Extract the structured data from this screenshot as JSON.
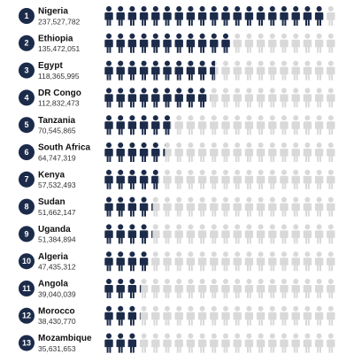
{
  "chart_data": {
    "type": "pictogram",
    "ranks": [
      "1",
      "2",
      "3",
      "4",
      "5",
      "6",
      "7",
      "8",
      "9",
      "10",
      "11",
      "12",
      "13"
    ],
    "categories": [
      "Nigeria",
      "Ethiopia",
      "Egypt",
      "DR Congo",
      "Tanzania",
      "South Africa",
      "Kenya",
      "Sudan",
      "Uganda",
      "Algeria",
      "Angola",
      "Morocco",
      "Mozambique"
    ],
    "values": [
      237527782,
      135472051,
      118365995,
      112832473,
      70545865,
      64747319,
      57532493,
      51662147,
      51384894,
      47435312,
      39040039,
      38430770,
      35631653
    ],
    "value_labels": [
      "237,527,782",
      "135,472,051",
      "118,365,995",
      "112,832,473",
      "70,545,865",
      "64,747,319",
      "57,532,493",
      "51,662,147",
      "51,384,894",
      "47,435,312",
      "39,040,039",
      "38,430,770",
      "35,631,653"
    ],
    "xlim": [
      0,
      250000000
    ],
    "color": "#1c2b4a",
    "empty_color": "#d9d9d9"
  }
}
